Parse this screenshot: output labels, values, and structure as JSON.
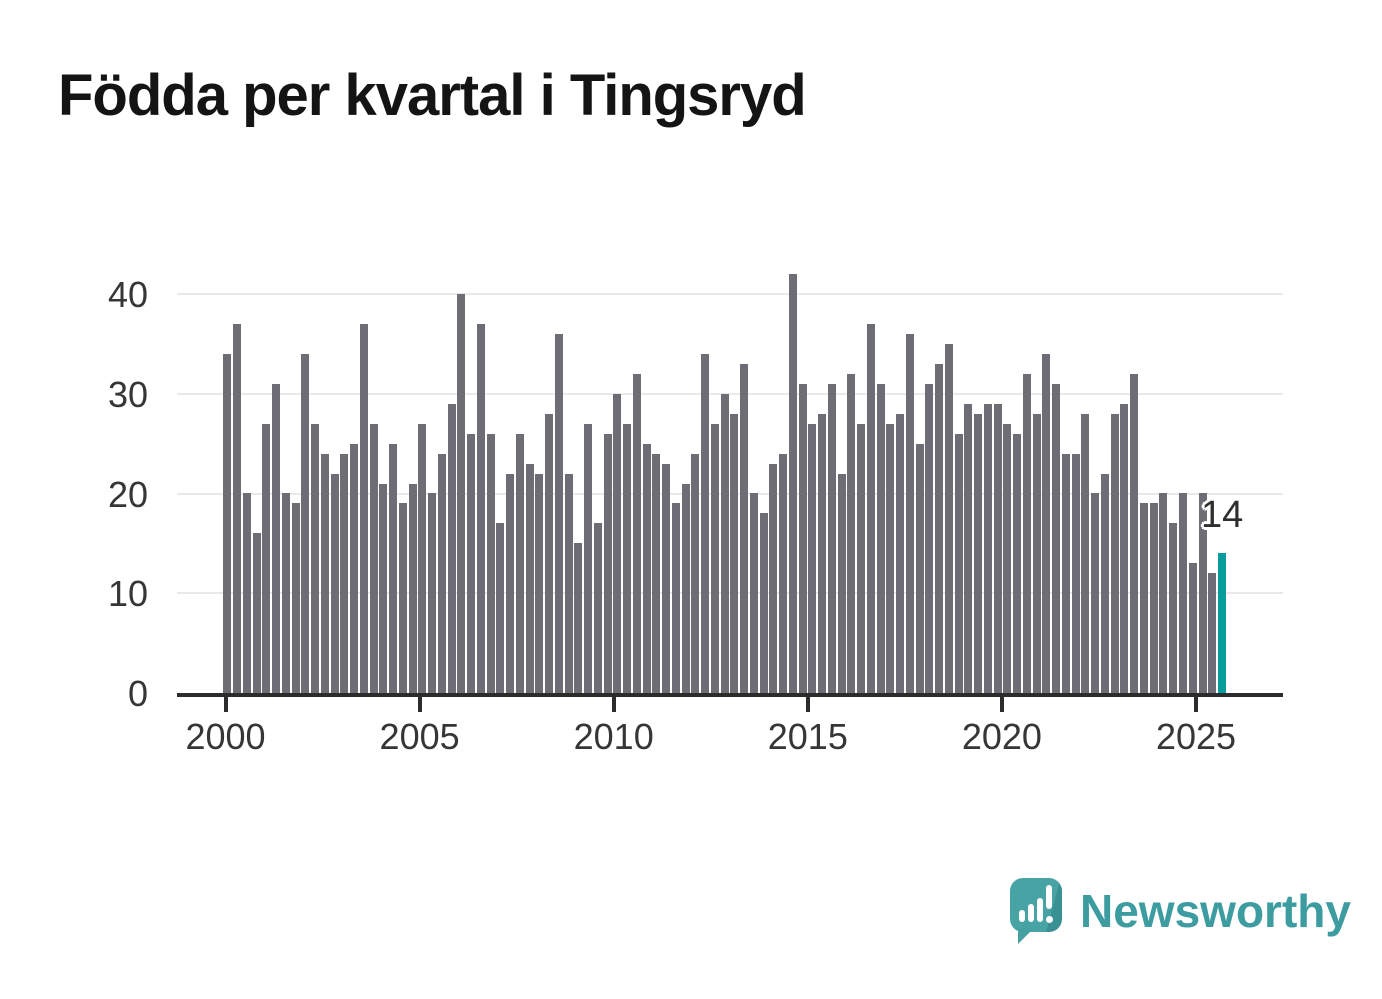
{
  "title": "Födda per kvartal i Tingsryd",
  "chart_data": {
    "type": "bar",
    "title": "Födda per kvartal i Tingsryd",
    "x_start": "2000 Q1",
    "x_end": "2025 Q3",
    "frequency": "quarterly",
    "xlabel": "",
    "ylabel": "",
    "ylim": [
      0,
      42
    ],
    "yticks": [
      0,
      10,
      20,
      30,
      40
    ],
    "xticks": [
      "2000",
      "2005",
      "2010",
      "2015",
      "2020",
      "2025"
    ],
    "grid": "horizontal",
    "bar_color": "#6e6c74",
    "highlight_color": "#089c9c",
    "axis_color": "#2c2c2c",
    "grid_color": "#e9e9e9",
    "label_color": "#363636",
    "values": [
      34,
      37,
      20,
      16,
      27,
      31,
      20,
      19,
      34,
      27,
      24,
      22,
      24,
      25,
      37,
      27,
      21,
      25,
      19,
      21,
      27,
      20,
      24,
      29,
      40,
      26,
      37,
      26,
      17,
      22,
      26,
      23,
      22,
      28,
      36,
      22,
      15,
      27,
      17,
      26,
      30,
      27,
      32,
      25,
      24,
      23,
      19,
      21,
      24,
      34,
      27,
      30,
      28,
      33,
      20,
      18,
      23,
      24,
      42,
      31,
      27,
      28,
      31,
      22,
      32,
      27,
      37,
      31,
      27,
      28,
      36,
      25,
      31,
      33,
      35,
      26,
      29,
      28,
      29,
      29,
      27,
      26,
      32,
      28,
      34,
      31,
      24,
      24,
      28,
      20,
      22,
      28,
      29,
      32,
      19,
      19,
      20,
      17,
      20,
      13,
      20,
      12,
      14
    ],
    "highlight_period": "2025 Q3",
    "annotation": {
      "text": "14",
      "target": "2025 Q3"
    }
  },
  "watermark": {
    "brand": "Newsworthy",
    "logo_icon": "speech-bubble-bar-chart-icon",
    "color": "#3c9ca0"
  }
}
